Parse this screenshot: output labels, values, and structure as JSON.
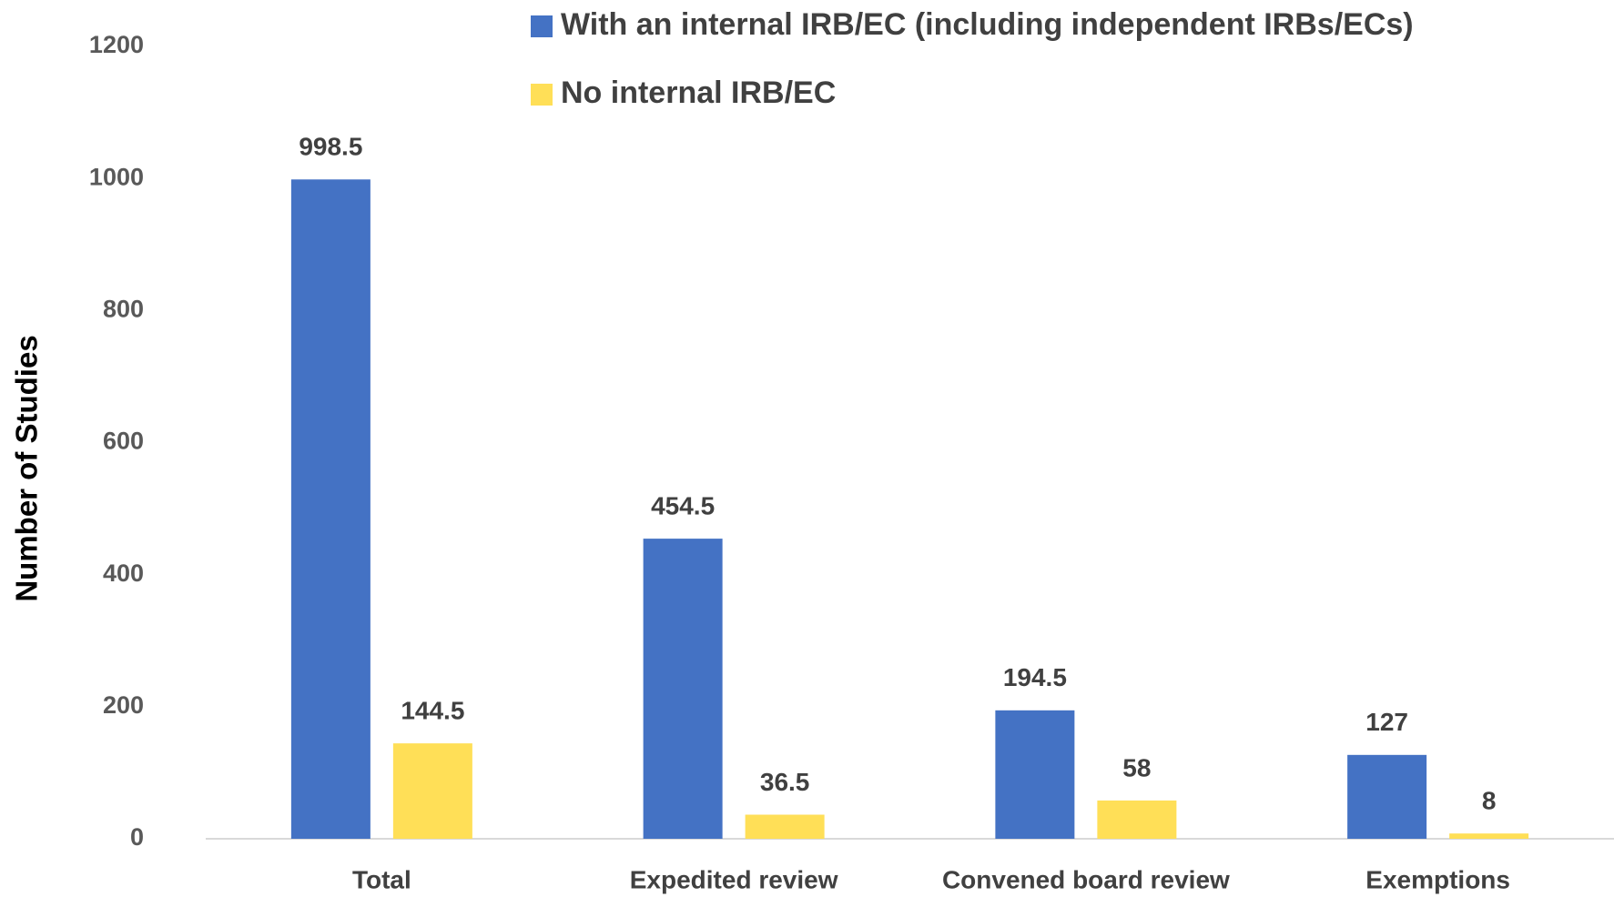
{
  "chart_data": {
    "type": "bar",
    "y_label": "Number of Studies",
    "categories": [
      "Total",
      "Expedited review",
      "Convened board review",
      "Exemptions"
    ],
    "series": [
      {
        "name": "With an internal IRB/EC (including independent IRBs/ECs)",
        "color": "#4472c4",
        "values": [
          998.5,
          454.5,
          194.5,
          127
        ]
      },
      {
        "name": "No internal IRB/EC",
        "color": "#ffdf57",
        "values": [
          144.5,
          36.5,
          58,
          8
        ]
      }
    ],
    "ylim": [
      0,
      1200
    ],
    "yticks": [
      0,
      200,
      400,
      600,
      800,
      1000,
      1200
    ],
    "grid": false,
    "legend": "top"
  }
}
